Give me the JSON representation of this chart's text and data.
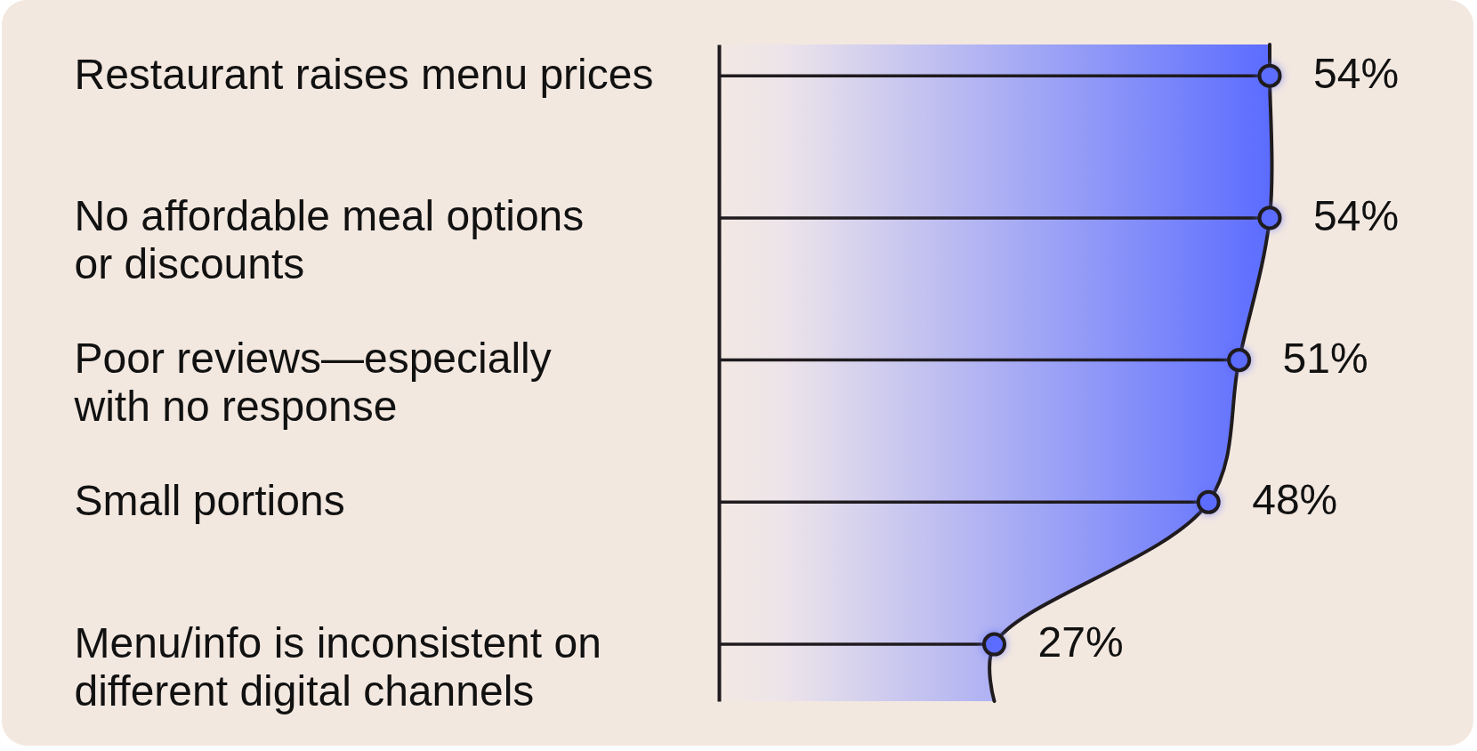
{
  "chart_data": {
    "type": "lollipop",
    "orientation": "horizontal",
    "categories": [
      "Restaurant raises menu prices",
      "No affordable meal options\nor discounts",
      "Poor reviews—especially\nwith no response",
      "Small portions",
      "Menu/info is inconsistent on\ndifferent digital channels"
    ],
    "values": [
      54,
      54,
      51,
      48,
      27
    ],
    "value_labels": [
      "54%",
      "54%",
      "51%",
      "48%",
      "27%"
    ],
    "color": "#5b6cff",
    "tick_labels": "y"
  }
}
